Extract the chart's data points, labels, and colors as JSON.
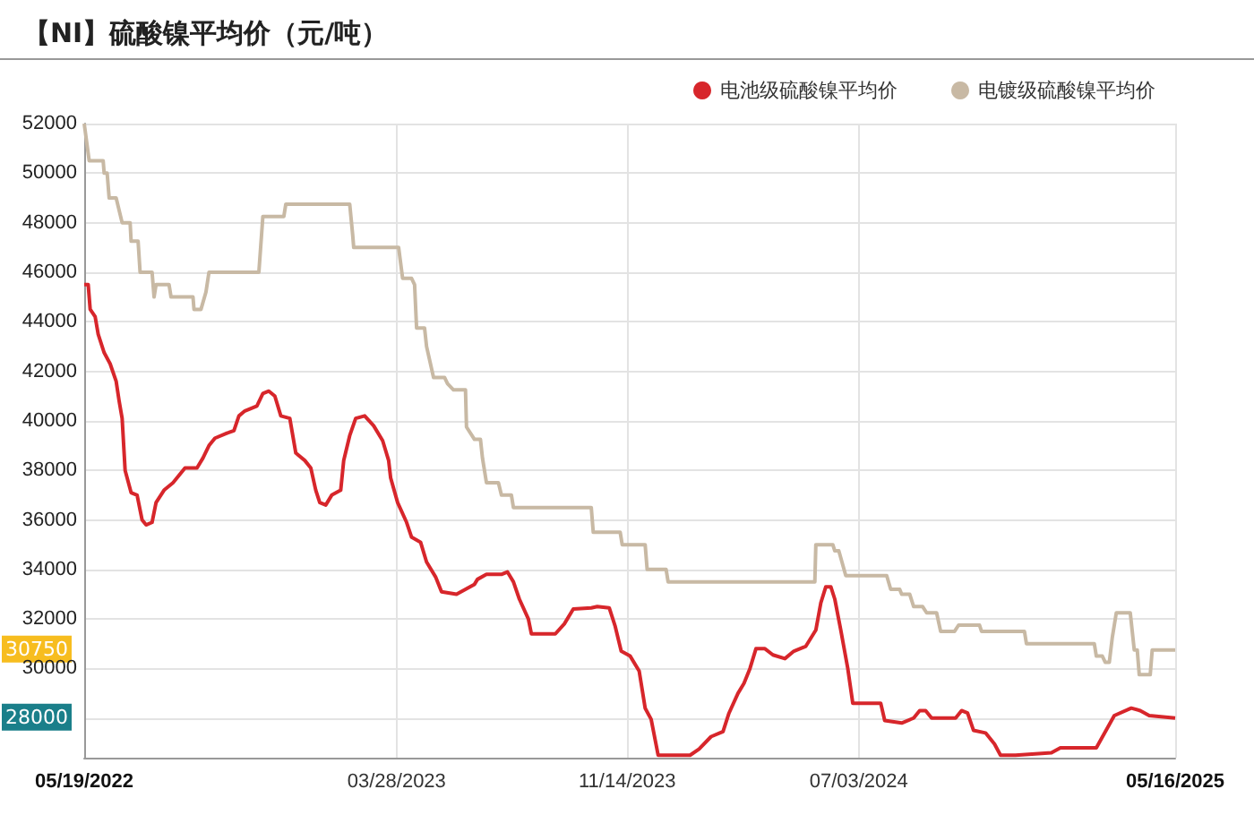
{
  "chart_data": {
    "type": "line",
    "title": "【NI】硫酸镍平均价（元/吨）",
    "xlim": [
      "2022-05-19",
      "2025-05-16"
    ],
    "xticks": [
      {
        "value": "2022-05-19",
        "label": "05/19/2022"
      },
      {
        "value": "2023-03-28",
        "label": "03/28/2023"
      },
      {
        "value": "2023-11-14",
        "label": "11/14/2023"
      },
      {
        "value": "2024-07-03",
        "label": "07/03/2024"
      },
      {
        "value": "2025-05-16",
        "label": "05/16/2025"
      }
    ],
    "ylim": [
      26400,
      52000
    ],
    "yticks": [
      {
        "value": 28000,
        "label": null
      },
      30000,
      32000,
      34000,
      36000,
      38000,
      40000,
      42000,
      44000,
      46000,
      48000,
      50000,
      52000
    ],
    "grid": true,
    "legend": "top right",
    "marker": "none",
    "line_style": "solid",
    "annotations": [
      "28000",
      "30750"
    ],
    "series": [
      {
        "name": "电池级硫酸镍平均价",
        "color": "#d7262b",
        "x": [
          "2022-05-19",
          "2022-05-23",
          "2022-05-25",
          "2022-05-30",
          "2022-06-02",
          "2022-06-08",
          "2022-06-14",
          "2022-06-20",
          "2022-06-23",
          "2022-06-26",
          "2022-06-29",
          "2022-07-05",
          "2022-07-11",
          "2022-07-16",
          "2022-07-20",
          "2022-07-26",
          "2022-07-30",
          "2022-08-07",
          "2022-08-16",
          "2022-08-28",
          "2022-09-09",
          "2022-09-15",
          "2022-09-21",
          "2022-09-27",
          "2022-10-09",
          "2022-10-16",
          "2022-10-21",
          "2022-10-27",
          "2022-11-08",
          "2022-11-14",
          "2022-11-20",
          "2022-11-26",
          "2022-12-02",
          "2022-12-11",
          "2022-12-17",
          "2022-12-26",
          "2023-01-01",
          "2023-01-06",
          "2023-01-10",
          "2023-01-16",
          "2023-01-22",
          "2023-01-31",
          "2023-02-03",
          "2023-02-09",
          "2023-02-15",
          "2023-02-24",
          "2023-03-05",
          "2023-03-14",
          "2023-03-20",
          "2023-03-22",
          "2023-03-29",
          "2023-04-07",
          "2023-04-12",
          "2023-04-21",
          "2023-04-27",
          "2023-05-06",
          "2023-05-12",
          "2023-05-27",
          "2023-06-05",
          "2023-06-14",
          "2023-06-17",
          "2023-06-26",
          "2023-07-11",
          "2023-07-17",
          "2023-07-23",
          "2023-07-29",
          "2023-08-07",
          "2023-08-10",
          "2023-08-19",
          "2023-09-03",
          "2023-09-12",
          "2023-09-21",
          "2023-10-09",
          "2023-10-15",
          "2023-10-27",
          "2023-11-02",
          "2023-11-08",
          "2023-11-17",
          "2023-11-26",
          "2023-12-02",
          "2023-12-08",
          "2023-12-15",
          "2024-01-16",
          "2024-01-25",
          "2024-02-06",
          "2024-02-18",
          "2024-02-24",
          "2024-03-04",
          "2024-03-10",
          "2024-03-16",
          "2024-03-22",
          "2024-03-31",
          "2024-04-08",
          "2024-04-20",
          "2024-04-29",
          "2024-05-11",
          "2024-05-21",
          "2024-05-26",
          "2024-05-31",
          "2024-06-05",
          "2024-06-09",
          "2024-06-15",
          "2024-06-22",
          "2024-06-27",
          "2024-07-25",
          "2024-07-29",
          "2024-08-15",
          "2024-08-27",
          "2024-09-02",
          "2024-09-08",
          "2024-09-14",
          "2024-10-08",
          "2024-10-14",
          "2024-10-20",
          "2024-10-26",
          "2024-11-07",
          "2024-11-16",
          "2024-11-22",
          "2024-12-07",
          "2025-01-12",
          "2025-01-21",
          "2025-02-26",
          "2025-03-07",
          "2025-03-16",
          "2025-04-02",
          "2025-04-11",
          "2025-04-20",
          "2025-05-16"
        ],
        "values": [
          45500,
          45500,
          44500,
          44200,
          43500,
          42750,
          42300,
          41600,
          40800,
          40100,
          38000,
          37100,
          37000,
          36000,
          35800,
          35900,
          36700,
          37200,
          37500,
          38100,
          38100,
          38500,
          39000,
          39300,
          39500,
          39600,
          40200,
          40400,
          40600,
          41100,
          41200,
          41000,
          40200,
          40100,
          38700,
          38400,
          38100,
          37200,
          36700,
          36600,
          37000,
          37200,
          38400,
          39400,
          40100,
          40200,
          39800,
          39200,
          38400,
          37700,
          36700,
          35900,
          35300,
          35100,
          34300,
          33700,
          33100,
          33000,
          33200,
          33400,
          33600,
          33800,
          33800,
          33900,
          33500,
          32800,
          32000,
          31400,
          31400,
          31400,
          31800,
          32400,
          32450,
          32500,
          32450,
          31700,
          30700,
          30500,
          29900,
          28400,
          27950,
          26500,
          26500,
          26750,
          27250,
          27450,
          28200,
          29000,
          29400,
          30000,
          30800,
          30800,
          30550,
          30400,
          30700,
          30900,
          31550,
          32650,
          33300,
          33300,
          32800,
          31550,
          30000,
          28600,
          28600,
          27900,
          27800,
          28000,
          28300,
          28300,
          28000,
          28000,
          28300,
          28200,
          27500,
          27400,
          26950,
          26500,
          26500,
          26600,
          26800,
          26800,
          27450,
          28100,
          28400,
          28300,
          28100,
          28000
        ]
      },
      {
        "name": "电镀级硫酸镍平均价",
        "color": "#c8b9a4",
        "x": [
          "2022-05-19",
          "2022-05-24",
          "2022-06-07",
          "2022-06-08",
          "2022-06-11",
          "2022-06-13",
          "2022-06-20",
          "2022-06-26",
          "2022-07-04",
          "2022-07-05",
          "2022-07-12",
          "2022-07-14",
          "2022-07-26",
          "2022-07-28",
          "2022-07-30",
          "2022-08-12",
          "2022-08-14",
          "2022-09-05",
          "2022-09-06",
          "2022-09-13",
          "2022-09-18",
          "2022-09-21",
          "2022-11-10",
          "2022-11-14",
          "2022-12-05",
          "2022-12-07",
          "2023-02-09",
          "2023-02-12",
          "2023-02-13",
          "2023-03-30",
          "2023-04-03",
          "2023-04-12",
          "2023-04-15",
          "2023-04-17",
          "2023-04-25",
          "2023-04-27",
          "2023-05-04",
          "2023-05-15",
          "2023-05-18",
          "2023-05-24",
          "2023-06-05",
          "2023-06-06",
          "2023-06-14",
          "2023-06-20",
          "2023-06-22",
          "2023-06-26",
          "2023-07-08",
          "2023-07-11",
          "2023-07-21",
          "2023-07-23",
          "2023-10-09",
          "2023-10-11",
          "2023-11-07",
          "2023-11-09",
          "2023-12-02",
          "2023-12-04",
          "2023-12-23",
          "2023-12-25",
          "2024-05-20",
          "2024-05-21",
          "2024-06-07",
          "2024-06-09",
          "2024-06-13",
          "2024-06-20",
          "2024-07-31",
          "2024-08-04",
          "2024-08-13",
          "2024-08-15",
          "2024-08-23",
          "2024-08-27",
          "2024-09-05",
          "2024-09-09",
          "2024-09-19",
          "2024-09-23",
          "2024-10-07",
          "2024-10-11",
          "2024-11-01",
          "2024-11-03",
          "2024-12-16",
          "2024-12-18",
          "2025-02-24",
          "2025-02-26",
          "2025-03-04",
          "2025-03-07",
          "2025-03-11",
          "2025-03-14",
          "2025-03-18",
          "2025-04-01",
          "2025-04-05",
          "2025-04-08",
          "2025-04-10",
          "2025-04-21",
          "2025-04-23",
          "2025-05-16"
        ],
        "values": [
          52000,
          50500,
          50500,
          50000,
          50000,
          49000,
          49000,
          48000,
          48000,
          47250,
          47250,
          46000,
          46000,
          45000,
          45500,
          45500,
          45000,
          45000,
          44500,
          44500,
          45200,
          46000,
          46000,
          48250,
          48250,
          48750,
          48750,
          47500,
          47000,
          47000,
          45750,
          45750,
          45500,
          43750,
          43750,
          43000,
          41750,
          41750,
          41500,
          41250,
          41250,
          39750,
          39250,
          39250,
          38500,
          37500,
          37500,
          37000,
          37000,
          36500,
          36500,
          35500,
          35500,
          35000,
          35000,
          34000,
          34000,
          33500,
          33500,
          35000,
          35000,
          34750,
          34750,
          33750,
          33750,
          33200,
          33200,
          33000,
          33000,
          32500,
          32500,
          32250,
          32250,
          31500,
          31500,
          31750,
          31750,
          31500,
          31500,
          31000,
          31000,
          30500,
          30500,
          30250,
          30250,
          31250,
          32250,
          32250,
          30750,
          30750,
          29750,
          29750,
          30750,
          30750
        ]
      }
    ]
  }
}
